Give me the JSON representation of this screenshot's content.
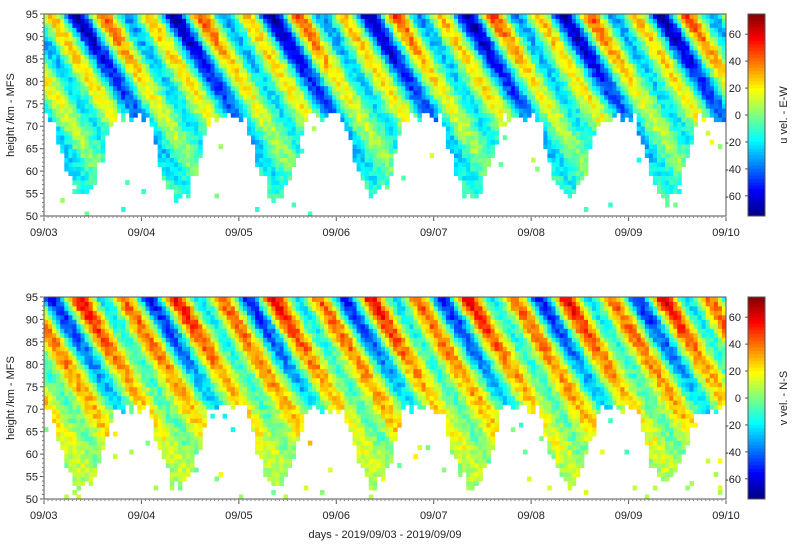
{
  "chart_data": [
    {
      "type": "heatmap",
      "ylabel": "height /km - MFS",
      "xlabel": "",
      "x_ticks": [
        "09/03",
        "09/04",
        "09/05",
        "09/06",
        "09/07",
        "09/08",
        "09/09",
        "09/10"
      ],
      "xlim_days": [
        0,
        7
      ],
      "y_ticks": [
        50,
        55,
        60,
        65,
        70,
        75,
        80,
        85,
        90,
        95
      ],
      "ylim": [
        50,
        95
      ],
      "colorbar": {
        "label": "u vel. - E-W",
        "ticks": [
          60,
          40,
          20,
          0,
          -20,
          -40,
          -60
        ],
        "tick_labels": [
          "60",
          "40",
          "20",
          "0",
          "-20",
          "-40",
          "-60"
        ],
        "range": [
          -75,
          75
        ],
        "colormap": "jet"
      },
      "field": {
        "series_name": "u",
        "day_phase_offset": 0.0,
        "semidiurnal_amplitude": 45,
        "diurnal_amplitude": 20,
        "mean_wind": -8,
        "lower_coverage_day_km": 54,
        "lower_coverage_night_km": 72
      }
    },
    {
      "type": "heatmap",
      "ylabel": "height /km - MFS",
      "xlabel": "days - 2019/09/03 - 2019/09/09",
      "x_ticks": [
        "09/03",
        "09/04",
        "09/05",
        "09/06",
        "09/07",
        "09/08",
        "09/09",
        "09/10"
      ],
      "xlim_days": [
        0,
        7
      ],
      "y_ticks": [
        50,
        55,
        60,
        65,
        70,
        75,
        80,
        85,
        90,
        95
      ],
      "ylim": [
        50,
        95
      ],
      "colorbar": {
        "label": "v vel. - N-S",
        "ticks": [
          60,
          40,
          20,
          0,
          -20,
          -40,
          -60
        ],
        "tick_labels": [
          "60",
          "40",
          "20",
          "0",
          "-20",
          "-40",
          "-60"
        ],
        "range": [
          -75,
          75
        ],
        "colormap": "jet"
      },
      "field": {
        "series_name": "v",
        "day_phase_offset": 0.25,
        "semidiurnal_amplitude": 45,
        "diurnal_amplitude": 18,
        "mean_wind": 6,
        "lower_coverage_day_km": 53,
        "lower_coverage_night_km": 70
      }
    }
  ]
}
